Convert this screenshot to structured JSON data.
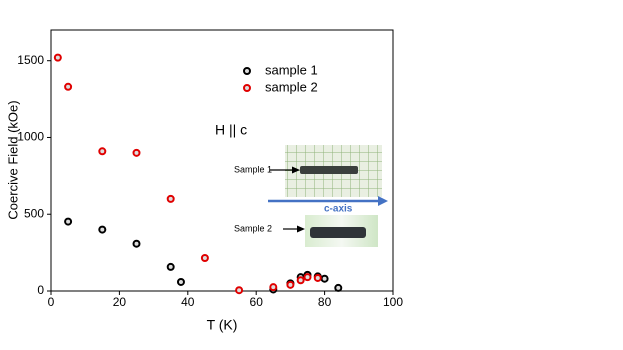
{
  "chart_data": {
    "type": "scatter",
    "xlabel": "T (K)",
    "ylabel": "Coercive Field (kOe)",
    "xlim": [
      0,
      100
    ],
    "xticks": [
      0,
      20,
      40,
      60,
      80,
      100
    ],
    "ylim": [
      0,
      1700
    ],
    "yticks": [
      0,
      500,
      1000,
      1500
    ],
    "legend": "upper center",
    "annotations": [
      "H || c",
      "Sample 1",
      "Sample 2",
      "c-axis"
    ],
    "series": [
      {
        "name": "sample 1",
        "color": "#000000",
        "x": [
          5,
          15,
          25,
          35,
          38,
          65,
          70,
          73,
          75,
          78,
          80,
          84
        ],
        "values": [
          452,
          400,
          308,
          157,
          59,
          10,
          50,
          90,
          105,
          95,
          80,
          20
        ]
      },
      {
        "name": "sample 2",
        "color": "#e00000",
        "x": [
          2,
          5,
          15,
          25,
          35,
          45,
          55,
          65,
          70,
          73,
          75,
          78
        ],
        "values": [
          1520,
          1330,
          910,
          900,
          600,
          215,
          5,
          25,
          40,
          70,
          90,
          85
        ]
      }
    ]
  }
}
